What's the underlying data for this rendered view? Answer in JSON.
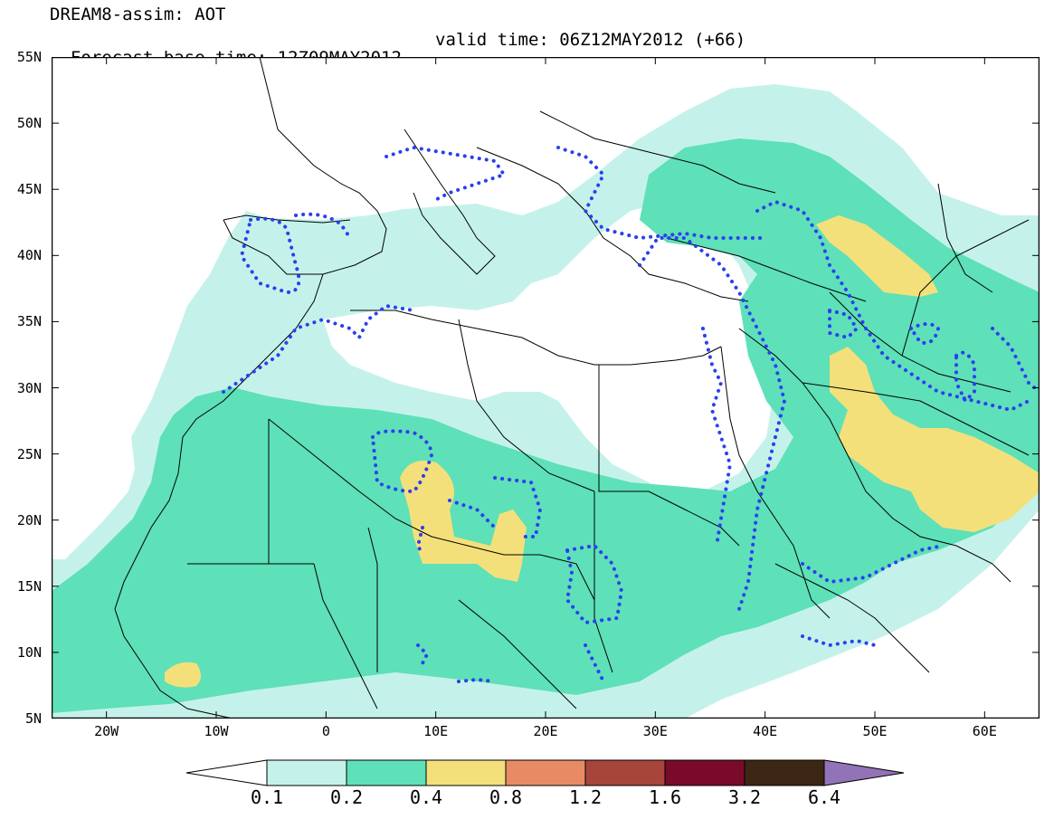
{
  "title": {
    "line1": "DREAM8-assim: AOT",
    "base_time": "Forecast base time: 12Z09MAY2012",
    "valid_time": "valid time: 06Z12MAY2012 (+66)"
  },
  "map": {
    "lon_range": [
      -25,
      65
    ],
    "lat_range": [
      5,
      55
    ],
    "lat_labels": [
      {
        "lat": 55,
        "text": "55N"
      },
      {
        "lat": 50,
        "text": "50N"
      },
      {
        "lat": 45,
        "text": "45N"
      },
      {
        "lat": 40,
        "text": "40N"
      },
      {
        "lat": 35,
        "text": "35N"
      },
      {
        "lat": 30,
        "text": "30N"
      },
      {
        "lat": 25,
        "text": "25N"
      },
      {
        "lat": 20,
        "text": "20N"
      },
      {
        "lat": 15,
        "text": "15N"
      },
      {
        "lat": 10,
        "text": "10N"
      },
      {
        "lat": 5,
        "text": "5N"
      }
    ],
    "lon_labels": [
      {
        "lon": -20,
        "text": "20W"
      },
      {
        "lon": -10,
        "text": "10W"
      },
      {
        "lon": 0,
        "text": "0"
      },
      {
        "lon": 10,
        "text": "10E"
      },
      {
        "lon": 20,
        "text": "20E"
      },
      {
        "lon": 30,
        "text": "30E"
      },
      {
        "lon": 40,
        "text": "40E"
      },
      {
        "lon": 50,
        "text": "50E"
      },
      {
        "lon": 60,
        "text": "60E"
      }
    ],
    "colors": {
      "level_0_1": "#c4f2ea",
      "level_0_2": "#5ee0b8",
      "level_0_4": "#f4e07a",
      "contour": "#2b3ff0",
      "border": "#000000"
    }
  },
  "colorbar": {
    "labels": [
      "0.1",
      "0.2",
      "0.4",
      "0.8",
      "1.2",
      "1.6",
      "3.2",
      "6.4"
    ],
    "colors": [
      "#c4f2ea",
      "#5ee0b8",
      "#f4e07a",
      "#e88b64",
      "#a8453a",
      "#7a0a2a",
      "#3c2714",
      "#9373b8"
    ]
  }
}
